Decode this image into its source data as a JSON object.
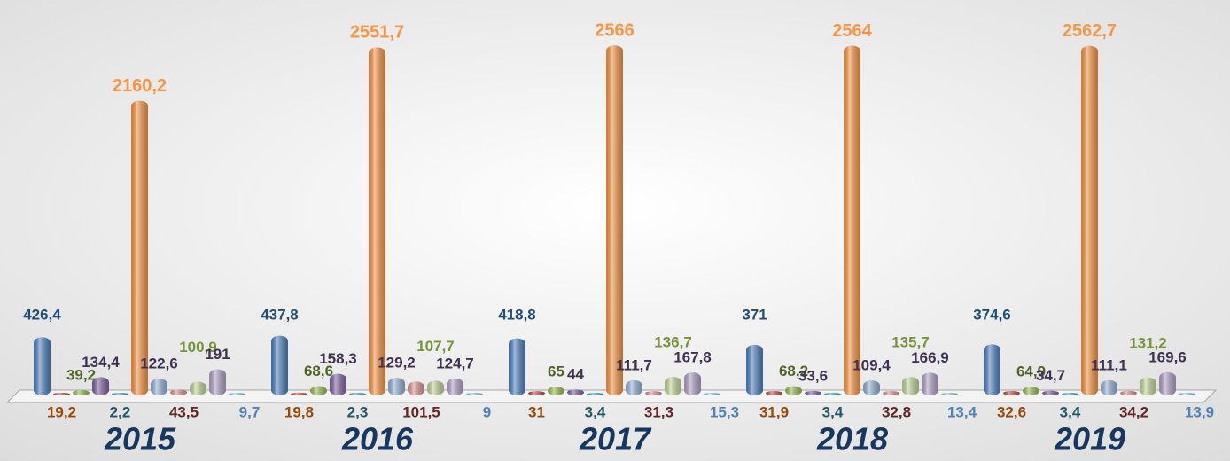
{
  "chart_data": {
    "type": "bar3d",
    "categories": [
      "2015",
      "2016",
      "2017",
      "2018",
      "2019"
    ],
    "ylim": [
      0,
      2600
    ],
    "series": [
      {
        "color": "#4f81bd",
        "label_color": "#1f4e79",
        "values": [
          426.4,
          437.8,
          418.8,
          371,
          374.6
        ],
        "value_labels": [
          "426,4",
          "437,8",
          "418,8",
          "371",
          "374,6"
        ]
      },
      {
        "color": "#c0504d",
        "label_color": "#984807",
        "values": [
          19.2,
          19.8,
          31,
          31.9,
          32.6
        ],
        "value_labels": [
          "19,2",
          "19,8",
          "31",
          "31,9",
          "32,6"
        ]
      },
      {
        "color": "#9bbb59",
        "label_color": "#4f6228",
        "values": [
          39.2,
          68.6,
          65,
          68.2,
          64.9
        ],
        "value_labels": [
          "39,2",
          "68,6",
          "65",
          "68,2",
          "64,9"
        ]
      },
      {
        "color": "#8064a2",
        "label_color": "#3f3151",
        "values": [
          134.4,
          158.3,
          44,
          33.6,
          34.7
        ],
        "value_labels": [
          "134,4",
          "158,3",
          "44",
          "33,6",
          "34,7"
        ]
      },
      {
        "color": "#4bacc6",
        "label_color": "#215967",
        "values": [
          2.2,
          2.3,
          3.4,
          3.4,
          3.4
        ],
        "value_labels": [
          "2,2",
          "2,3",
          "3,4",
          "3,4",
          "3,4"
        ]
      },
      {
        "color": "#f79646",
        "label_color": "#f79646",
        "values": [
          2160.2,
          2551.7,
          2566,
          2564,
          2562.7
        ],
        "value_labels": [
          "2160,2",
          "2551,7",
          "2566",
          "2564",
          "2562,7"
        ]
      },
      {
        "color": "#95b3d7",
        "label_color": "#3f3151",
        "values": [
          122.6,
          129.2,
          111.7,
          109.4,
          111.1
        ],
        "value_labels": [
          "122,6",
          "129,2",
          "111,7",
          "109,4",
          "111,1"
        ]
      },
      {
        "color": "#d99694",
        "label_color": "#632523",
        "values": [
          43.5,
          101.5,
          31.3,
          32.8,
          34.2
        ],
        "value_labels": [
          "43,5",
          "101,5",
          "31,3",
          "32,8",
          "34,2"
        ]
      },
      {
        "color": "#c3d69b",
        "label_color": "#77933c",
        "values": [
          100.9,
          107.7,
          136.7,
          135.7,
          131.2
        ],
        "value_labels": [
          "100,9",
          "107,7",
          "136,7",
          "135,7",
          "131,2"
        ]
      },
      {
        "color": "#b3a2c7",
        "label_color": "#403152",
        "values": [
          191,
          124.7,
          167.8,
          166.9,
          169.6
        ],
        "value_labels": [
          "191",
          "124,7",
          "167,8",
          "166,9",
          "169,6"
        ]
      },
      {
        "color": "#93cddd",
        "label_color": "#4f81bd",
        "values": [
          9.7,
          9,
          15.3,
          13.4,
          13.9
        ],
        "value_labels": [
          "9,7",
          "9",
          "15,3",
          "13,4",
          "13,9"
        ]
      }
    ]
  }
}
